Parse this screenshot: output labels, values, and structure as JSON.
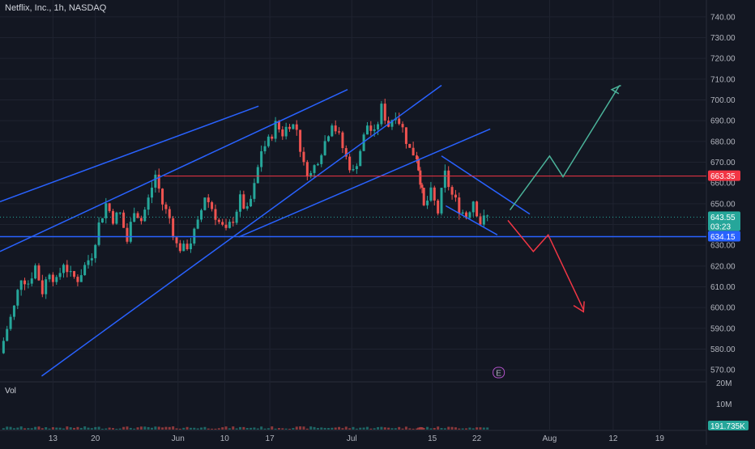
{
  "header": {
    "symbol_line": "Netflix, Inc., 1h, NASDAQ"
  },
  "volume_label": "Vol",
  "earnings_marker": "E",
  "colors": {
    "background": "#131722",
    "grid": "#1f2330",
    "up": "#26a69a",
    "down": "#ef5350",
    "trendline": "#2962ff",
    "resistance": "#f23645",
    "arrow_up": "#4bb39a",
    "arrow_down": "#f23645"
  },
  "chart_data": {
    "type": "candlestick",
    "title": "Netflix, Inc., 1h, NASDAQ",
    "ylim": [
      565,
      745
    ],
    "y_ticks": [
      "740.00",
      "730.00",
      "720.00",
      "710.00",
      "700.00",
      "690.00",
      "680.00",
      "670.00",
      "660.00",
      "650.00",
      "640.00",
      "630.00",
      "620.00",
      "610.00",
      "600.00",
      "590.00",
      "580.00",
      "570.00"
    ],
    "y_tick_values": [
      740,
      730,
      720,
      710,
      700,
      690,
      680,
      670,
      660,
      650,
      640,
      630,
      620,
      610,
      600,
      590,
      580,
      570
    ],
    "x_ticks": [
      "13",
      "20",
      "Jun",
      "10",
      "17",
      "Jul",
      "15",
      "22",
      "Aug",
      "12",
      "19"
    ],
    "x_tick_positions": [
      0.075,
      0.135,
      0.252,
      0.318,
      0.382,
      0.498,
      0.612,
      0.675,
      0.778,
      0.868,
      0.934
    ],
    "price_levels": [
      {
        "label": "663.35",
        "value": 663.35,
        "role": "resistance"
      },
      {
        "label": "643.55",
        "value": 643.55,
        "role": "last-price",
        "countdown": "03:23"
      },
      {
        "label": "634.15",
        "value": 634.15,
        "role": "support"
      }
    ],
    "volume": {
      "y_ticks": [
        "20M",
        "10M"
      ],
      "y_tick_values": [
        20,
        10
      ],
      "last_value_label": "191.735K"
    },
    "price_path": [
      [
        0.0,
        578
      ],
      [
        0.01,
        590
      ],
      [
        0.02,
        600
      ],
      [
        0.03,
        615
      ],
      [
        0.04,
        612
      ],
      [
        0.05,
        620
      ],
      [
        0.06,
        608
      ],
      [
        0.07,
        618
      ],
      [
        0.08,
        612
      ],
      [
        0.09,
        622
      ],
      [
        0.1,
        615
      ],
      [
        0.11,
        614
      ],
      [
        0.12,
        620
      ],
      [
        0.13,
        626
      ],
      [
        0.14,
        640
      ],
      [
        0.15,
        650
      ],
      [
        0.16,
        643
      ],
      [
        0.17,
        645
      ],
      [
        0.18,
        632
      ],
      [
        0.19,
        648
      ],
      [
        0.2,
        642
      ],
      [
        0.21,
        652
      ],
      [
        0.22,
        664
      ],
      [
        0.23,
        650
      ],
      [
        0.24,
        643
      ],
      [
        0.25,
        630
      ],
      [
        0.26,
        628
      ],
      [
        0.27,
        632
      ],
      [
        0.28,
        640
      ],
      [
        0.29,
        654
      ],
      [
        0.3,
        648
      ],
      [
        0.31,
        641
      ],
      [
        0.32,
        636
      ],
      [
        0.33,
        643
      ],
      [
        0.34,
        652
      ],
      [
        0.35,
        646
      ],
      [
        0.36,
        658
      ],
      [
        0.37,
        676
      ],
      [
        0.38,
        680
      ],
      [
        0.39,
        688
      ],
      [
        0.4,
        684
      ],
      [
        0.41,
        689
      ],
      [
        0.42,
        686
      ],
      [
        0.43,
        668
      ],
      [
        0.44,
        664
      ],
      [
        0.45,
        672
      ],
      [
        0.46,
        680
      ],
      [
        0.47,
        690
      ],
      [
        0.48,
        682
      ],
      [
        0.49,
        672
      ],
      [
        0.5,
        665
      ],
      [
        0.51,
        676
      ],
      [
        0.52,
        688
      ],
      [
        0.53,
        683
      ],
      [
        0.54,
        696
      ],
      [
        0.55,
        688
      ],
      [
        0.56,
        694
      ],
      [
        0.57,
        686
      ],
      [
        0.58,
        676
      ],
      [
        0.59,
        673
      ],
      [
        0.595,
        662
      ],
      [
        0.6,
        648
      ],
      [
        0.61,
        655
      ],
      [
        0.62,
        646
      ],
      [
        0.63,
        664
      ],
      [
        0.64,
        654
      ],
      [
        0.65,
        648
      ],
      [
        0.66,
        644
      ],
      [
        0.67,
        652
      ],
      [
        0.68,
        641
      ],
      [
        0.69,
        643.55
      ]
    ]
  }
}
